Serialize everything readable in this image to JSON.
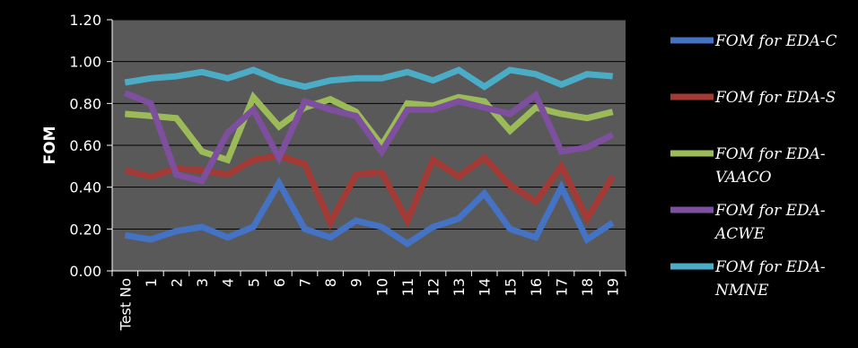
{
  "chart_data": {
    "type": "line",
    "title": "",
    "xlabel": "",
    "ylabel": "FOM",
    "ylim": [
      0,
      1.2
    ],
    "yticks": [
      "0.00",
      "0.20",
      "0.40",
      "0.60",
      "0.80",
      "1.00",
      "1.20"
    ],
    "categories": [
      "Test No",
      "1",
      "2",
      "3",
      "4",
      "5",
      "6",
      "7",
      "8",
      "9",
      "10",
      "11",
      "12",
      "13",
      "14",
      "15",
      "16",
      "17",
      "18",
      "19"
    ],
    "grid": true,
    "legend_position": "right",
    "plot_background": "#595959",
    "series": [
      {
        "name": "FOM for EDA-C",
        "legend_lines": [
          "FOM for EDA-C"
        ],
        "color": "#4472c4",
        "values": [
          0.17,
          0.15,
          0.19,
          0.21,
          0.16,
          0.21,
          0.42,
          0.2,
          0.16,
          0.24,
          0.21,
          0.13,
          0.21,
          0.25,
          0.37,
          0.2,
          0.16,
          0.4,
          0.15,
          0.23
        ]
      },
      {
        "name": "FOM for EDA-S",
        "legend_lines": [
          "FOM for EDA-S"
        ],
        "color": "#a33a36",
        "values": [
          0.48,
          0.45,
          0.49,
          0.48,
          0.46,
          0.53,
          0.55,
          0.51,
          0.23,
          0.46,
          0.47,
          0.24,
          0.53,
          0.45,
          0.54,
          0.41,
          0.33,
          0.5,
          0.25,
          0.45
        ]
      },
      {
        "name": "FOM for EDA-VAACO",
        "legend_lines": [
          "FOM for EDA-",
          "VAACO"
        ],
        "color": "#9bbb59",
        "values": [
          0.75,
          0.74,
          0.73,
          0.57,
          0.53,
          0.83,
          0.69,
          0.78,
          0.82,
          0.76,
          0.6,
          0.8,
          0.79,
          0.83,
          0.81,
          0.67,
          0.78,
          0.75,
          0.73,
          0.76
        ]
      },
      {
        "name": "FOM for EDA-ACWE",
        "legend_lines": [
          "FOM for EDA-",
          "ACWE"
        ],
        "color": "#7d4f9e",
        "values": [
          0.85,
          0.8,
          0.46,
          0.43,
          0.66,
          0.77,
          0.54,
          0.81,
          0.77,
          0.74,
          0.57,
          0.77,
          0.77,
          0.81,
          0.78,
          0.75,
          0.84,
          0.57,
          0.59,
          0.65
        ]
      },
      {
        "name": "FOM for  EDA-NMNE",
        "legend_lines": [
          "FOM for  EDA-",
          "NMNE"
        ],
        "color": "#4bacc6",
        "values": [
          0.9,
          0.92,
          0.93,
          0.95,
          0.92,
          0.96,
          0.91,
          0.88,
          0.91,
          0.92,
          0.92,
          0.95,
          0.91,
          0.96,
          0.88,
          0.96,
          0.94,
          0.89,
          0.94,
          0.93
        ]
      }
    ]
  }
}
